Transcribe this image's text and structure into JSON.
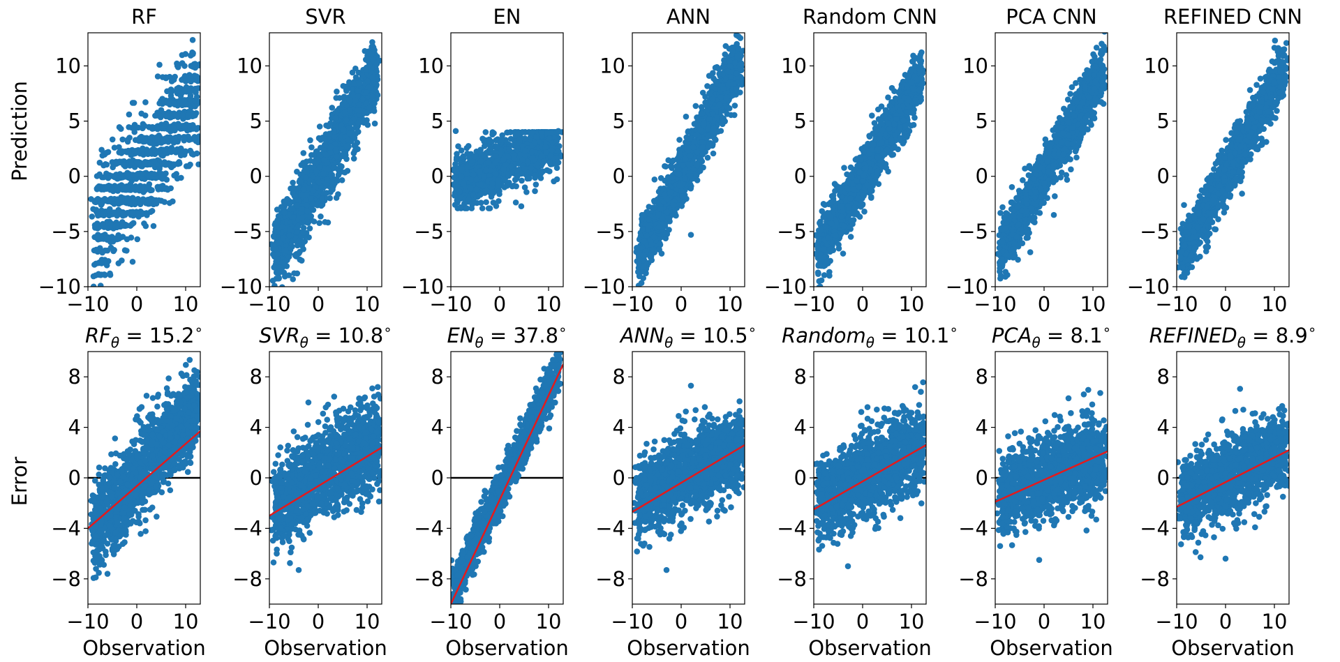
{
  "figure": {
    "top_row": {
      "ylabel": "Prediction"
    },
    "bottom_row": {
      "ylabel": "Error",
      "xlabel": "Observation"
    }
  },
  "chart_data": [
    {
      "type": "scatter",
      "row": "prediction",
      "model": "RF",
      "title": "RF",
      "xlim": [
        -10,
        13
      ],
      "ylim": [
        -10,
        13
      ],
      "x_ticks": [
        -10,
        0,
        10
      ],
      "y_ticks": [
        -10,
        -5,
        0,
        5,
        10
      ],
      "xlabel": "",
      "ylabel": "Prediction",
      "color": "#1f77b4",
      "band": {
        "slope": 0.55,
        "intercept": 0.1,
        "width": 2.4,
        "x_range": [
          -8.5,
          12.5
        ],
        "n": 1300,
        "quantized": true
      },
      "outliers": [
        [
          -8,
          -2.2
        ],
        [
          -6,
          -5.7
        ],
        [
          -4,
          -5.7
        ],
        [
          -2,
          -5.7
        ],
        [
          5,
          6
        ],
        [
          7,
          7.3
        ],
        [
          9,
          7.3
        ],
        [
          11,
          7.3
        ],
        [
          12.3,
          7.2
        ]
      ]
    },
    {
      "type": "scatter",
      "row": "prediction",
      "model": "SVR",
      "title": "SVR",
      "xlim": [
        -10,
        13
      ],
      "ylim": [
        -10,
        13
      ],
      "x_ticks": [
        -10,
        0,
        10
      ],
      "y_ticks": [
        -10,
        -5,
        0,
        5,
        10
      ],
      "xlabel": "",
      "color": "#1f77b4",
      "band": {
        "slope": 0.8,
        "intercept": 0,
        "width": 1.6,
        "x_range": [
          -9,
          12
        ],
        "n": 1500
      },
      "outliers": [
        [
          -8,
          -6
        ],
        [
          -6,
          -7.3
        ],
        [
          7,
          9.4
        ],
        [
          9,
          9.1
        ],
        [
          12,
          10.2
        ],
        [
          10.5,
          6.2
        ]
      ]
    },
    {
      "type": "scatter",
      "row": "prediction",
      "model": "EN",
      "title": "EN",
      "xlim": [
        -10,
        13
      ],
      "ylim": [
        -10,
        13
      ],
      "x_ticks": [
        -10,
        0,
        10
      ],
      "y_ticks": [
        -10,
        -5,
        0,
        5,
        10
      ],
      "xlabel": "",
      "color": "#1f77b4",
      "band": {
        "slope": 0.2,
        "intercept": 1.0,
        "width": 1.3,
        "x_range": [
          -9,
          12
        ],
        "n": 1100,
        "clip": [
          -2.9,
          4.0
        ]
      },
      "outliers": [
        [
          -9,
          4.1
        ],
        [
          -8,
          -2.8
        ],
        [
          -2,
          -2.9
        ],
        [
          12,
          4.1
        ]
      ]
    },
    {
      "type": "scatter",
      "row": "prediction",
      "model": "ANN",
      "title": "ANN",
      "xlim": [
        -10,
        13
      ],
      "ylim": [
        -10,
        13
      ],
      "x_ticks": [
        -10,
        0,
        10
      ],
      "y_ticks": [
        -10,
        -5,
        0,
        5,
        10
      ],
      "xlabel": "",
      "color": "#1f77b4",
      "band": {
        "slope": 0.85,
        "intercept": 0.2,
        "width": 1.3,
        "x_range": [
          -8.5,
          12
        ],
        "n": 1500
      },
      "outliers": [
        [
          -8.6,
          -8
        ],
        [
          -8,
          -3.5
        ],
        [
          2,
          -5.3
        ],
        [
          10,
          10
        ],
        [
          11.5,
          10.9
        ],
        [
          12.5,
          8.8
        ],
        [
          -4,
          -7
        ]
      ]
    },
    {
      "type": "scatter",
      "row": "prediction",
      "model": "Random CNN",
      "title": "Random CNN",
      "xlim": [
        -10,
        13
      ],
      "ylim": [
        -10,
        13
      ],
      "x_ticks": [
        -10,
        0,
        10
      ],
      "y_ticks": [
        -10,
        -5,
        0,
        5,
        10
      ],
      "xlabel": "",
      "color": "#1f77b4",
      "band": {
        "slope": 0.75,
        "intercept": 0,
        "width": 1.3,
        "x_range": [
          -9,
          12
        ],
        "n": 1500
      },
      "outliers": [
        [
          -8,
          -2.5
        ],
        [
          -4,
          -7
        ],
        [
          6,
          8
        ],
        [
          12,
          8.3
        ],
        [
          10,
          8.5
        ]
      ]
    },
    {
      "type": "scatter",
      "row": "prediction",
      "model": "PCA CNN",
      "title": "PCA CNN",
      "xlim": [
        -10,
        13
      ],
      "ylim": [
        -10,
        13
      ],
      "x_ticks": [
        -10,
        0,
        10
      ],
      "y_ticks": [
        -10,
        -5,
        0,
        5,
        10
      ],
      "xlabel": "",
      "color": "#1f77b4",
      "band": {
        "slope": 0.78,
        "intercept": 0.1,
        "width": 1.2,
        "x_range": [
          -9,
          12
        ],
        "n": 1500
      },
      "outliers": [
        [
          -8.5,
          -2.8
        ],
        [
          -6,
          -7.2
        ],
        [
          9,
          8.8
        ],
        [
          12.5,
          9
        ],
        [
          2,
          -3.5
        ]
      ]
    },
    {
      "type": "scatter",
      "row": "prediction",
      "model": "REFINED CNN",
      "title": "REFINED CNN",
      "xlim": [
        -10,
        13
      ],
      "ylim": [
        -10,
        13
      ],
      "x_ticks": [
        -10,
        0,
        10
      ],
      "y_ticks": [
        -10,
        -5,
        0,
        5,
        10
      ],
      "xlabel": "",
      "color": "#1f77b4",
      "band": {
        "slope": 0.8,
        "intercept": 0.1,
        "width": 1.2,
        "x_range": [
          -9,
          12
        ],
        "n": 1500
      },
      "outliers": [
        [
          -8.5,
          -2.6
        ],
        [
          -7,
          -7.2
        ],
        [
          10,
          8.5
        ],
        [
          12.5,
          9
        ],
        [
          11,
          7.6
        ]
      ]
    },
    {
      "type": "scatter",
      "row": "error",
      "model": "RF",
      "title_name": "RF",
      "title_value": "15.2",
      "xlim": [
        -10,
        13
      ],
      "ylim": [
        -10,
        10
      ],
      "x_ticks": [
        -10,
        0,
        10
      ],
      "y_ticks": [
        -8,
        -4,
        0,
        4,
        8
      ],
      "xlabel": "Observation",
      "ylabel": "Error",
      "color": "#1f77b4",
      "band": {
        "slope": 0.45,
        "intercept": 0,
        "width": 1.7,
        "x_range": [
          -9,
          12.5
        ],
        "n": 1500
      },
      "fit_line": {
        "x": [
          -10,
          13
        ],
        "y": [
          -4.0,
          3.7
        ]
      },
      "outliers": [
        [
          -8.5,
          -6.2
        ],
        [
          -6,
          -7.6
        ],
        [
          2,
          6.5
        ],
        [
          12.5,
          4.9
        ]
      ]
    },
    {
      "type": "scatter",
      "row": "error",
      "model": "SVR",
      "title_name": "SVR",
      "title_value": "10.8",
      "xlim": [
        -10,
        13
      ],
      "ylim": [
        -10,
        10
      ],
      "x_ticks": [
        -10,
        0,
        10
      ],
      "y_ticks": [
        -8,
        -4,
        0,
        4,
        8
      ],
      "xlabel": "Observation",
      "color": "#1f77b4",
      "band": {
        "slope": 0.25,
        "intercept": 0,
        "width": 1.7,
        "x_range": [
          -9,
          12.5
        ],
        "n": 1500
      },
      "fit_line": {
        "x": [
          -10,
          13
        ],
        "y": [
          -3.0,
          2.4
        ]
      },
      "outliers": [
        [
          -8.5,
          -6
        ],
        [
          -4,
          -7.3
        ],
        [
          2,
          5.8
        ],
        [
          12.5,
          2.1
        ]
      ]
    },
    {
      "type": "scatter",
      "row": "error",
      "model": "EN",
      "title_name": "EN",
      "title_value": "37.8",
      "xlim": [
        -10,
        13
      ],
      "ylim": [
        -10,
        10
      ],
      "x_ticks": [
        -10,
        0,
        10
      ],
      "y_ticks": [
        -8,
        -4,
        0,
        4,
        8
      ],
      "xlabel": "Observation",
      "color": "#1f77b4",
      "band": {
        "slope": 0.8,
        "intercept": -1.2,
        "width": 0.9,
        "x_range": [
          -9.5,
          12
        ],
        "n": 1300
      },
      "fit_line": {
        "x": [
          -10,
          13
        ],
        "y": [
          -10,
          9.0
        ]
      },
      "outliers": [
        [
          -8,
          -9.6
        ],
        [
          -8.8,
          -8.2
        ],
        [
          12,
          8.4
        ]
      ]
    },
    {
      "type": "scatter",
      "row": "error",
      "model": "ANN",
      "title_name": "ANN",
      "title_value": "10.5",
      "xlim": [
        -10,
        13
      ],
      "ylim": [
        -10,
        10
      ],
      "x_ticks": [
        -10,
        0,
        10
      ],
      "y_ticks": [
        -8,
        -4,
        0,
        4,
        8
      ],
      "xlabel": "Observation",
      "color": "#1f77b4",
      "band": {
        "slope": 0.18,
        "intercept": 0,
        "width": 1.6,
        "x_range": [
          -9,
          12.5
        ],
        "n": 1500
      },
      "fit_line": {
        "x": [
          -10,
          13
        ],
        "y": [
          -2.7,
          2.6
        ]
      },
      "outliers": [
        [
          -9,
          -4.8
        ],
        [
          -3,
          -7.3
        ],
        [
          2,
          7.3
        ],
        [
          12,
          4.3
        ]
      ]
    },
    {
      "type": "scatter",
      "row": "error",
      "model": "Random CNN",
      "title_name": "Random",
      "title_value": "10.1",
      "xlim": [
        -10,
        13
      ],
      "ylim": [
        -10,
        10
      ],
      "x_ticks": [
        -10,
        0,
        10
      ],
      "y_ticks": [
        -8,
        -4,
        0,
        4,
        8
      ],
      "xlabel": "Observation",
      "color": "#1f77b4",
      "band": {
        "slope": 0.22,
        "intercept": 0,
        "width": 1.6,
        "x_range": [
          -9,
          12.5
        ],
        "n": 1500
      },
      "fit_line": {
        "x": [
          -10,
          13
        ],
        "y": [
          -2.5,
          2.6
        ]
      },
      "outliers": [
        [
          -3,
          -7
        ],
        [
          1,
          5.6
        ],
        [
          12.5,
          3.8
        ],
        [
          -8,
          -4.7
        ]
      ]
    },
    {
      "type": "scatter",
      "row": "error",
      "model": "PCA CNN",
      "title_name": "PCA",
      "title_value": "8.1",
      "xlim": [
        -10,
        13
      ],
      "ylim": [
        -10,
        10
      ],
      "x_ticks": [
        -10,
        0,
        10
      ],
      "y_ticks": [
        -8,
        -4,
        0,
        4,
        8
      ],
      "xlabel": "Observation",
      "color": "#1f77b4",
      "band": {
        "slope": 0.15,
        "intercept": 0,
        "width": 1.6,
        "x_range": [
          -9,
          12.5
        ],
        "n": 1500
      },
      "fit_line": {
        "x": [
          -10,
          13
        ],
        "y": [
          -1.9,
          2.1
        ]
      },
      "outliers": [
        [
          -9,
          -5.4
        ],
        [
          -1,
          -6.5
        ],
        [
          5,
          6.3
        ],
        [
          12.5,
          3.8
        ]
      ]
    },
    {
      "type": "scatter",
      "row": "error",
      "model": "REFINED CNN",
      "title_name": "REFINED",
      "title_value": "8.9",
      "xlim": [
        -10,
        13
      ],
      "ylim": [
        -10,
        10
      ],
      "x_ticks": [
        -10,
        0,
        10
      ],
      "y_ticks": [
        -8,
        -4,
        0,
        4,
        8
      ],
      "xlabel": "Observation",
      "color": "#1f77b4",
      "band": {
        "slope": 0.18,
        "intercept": 0,
        "width": 1.5,
        "x_range": [
          -9,
          12.5
        ],
        "n": 1500
      },
      "fit_line": {
        "x": [
          -10,
          13
        ],
        "y": [
          -2.3,
          2.2
        ]
      },
      "outliers": [
        [
          -8.5,
          -4.6
        ],
        [
          0,
          -6.4
        ],
        [
          2,
          5.3
        ],
        [
          12.5,
          3.2
        ]
      ]
    }
  ]
}
